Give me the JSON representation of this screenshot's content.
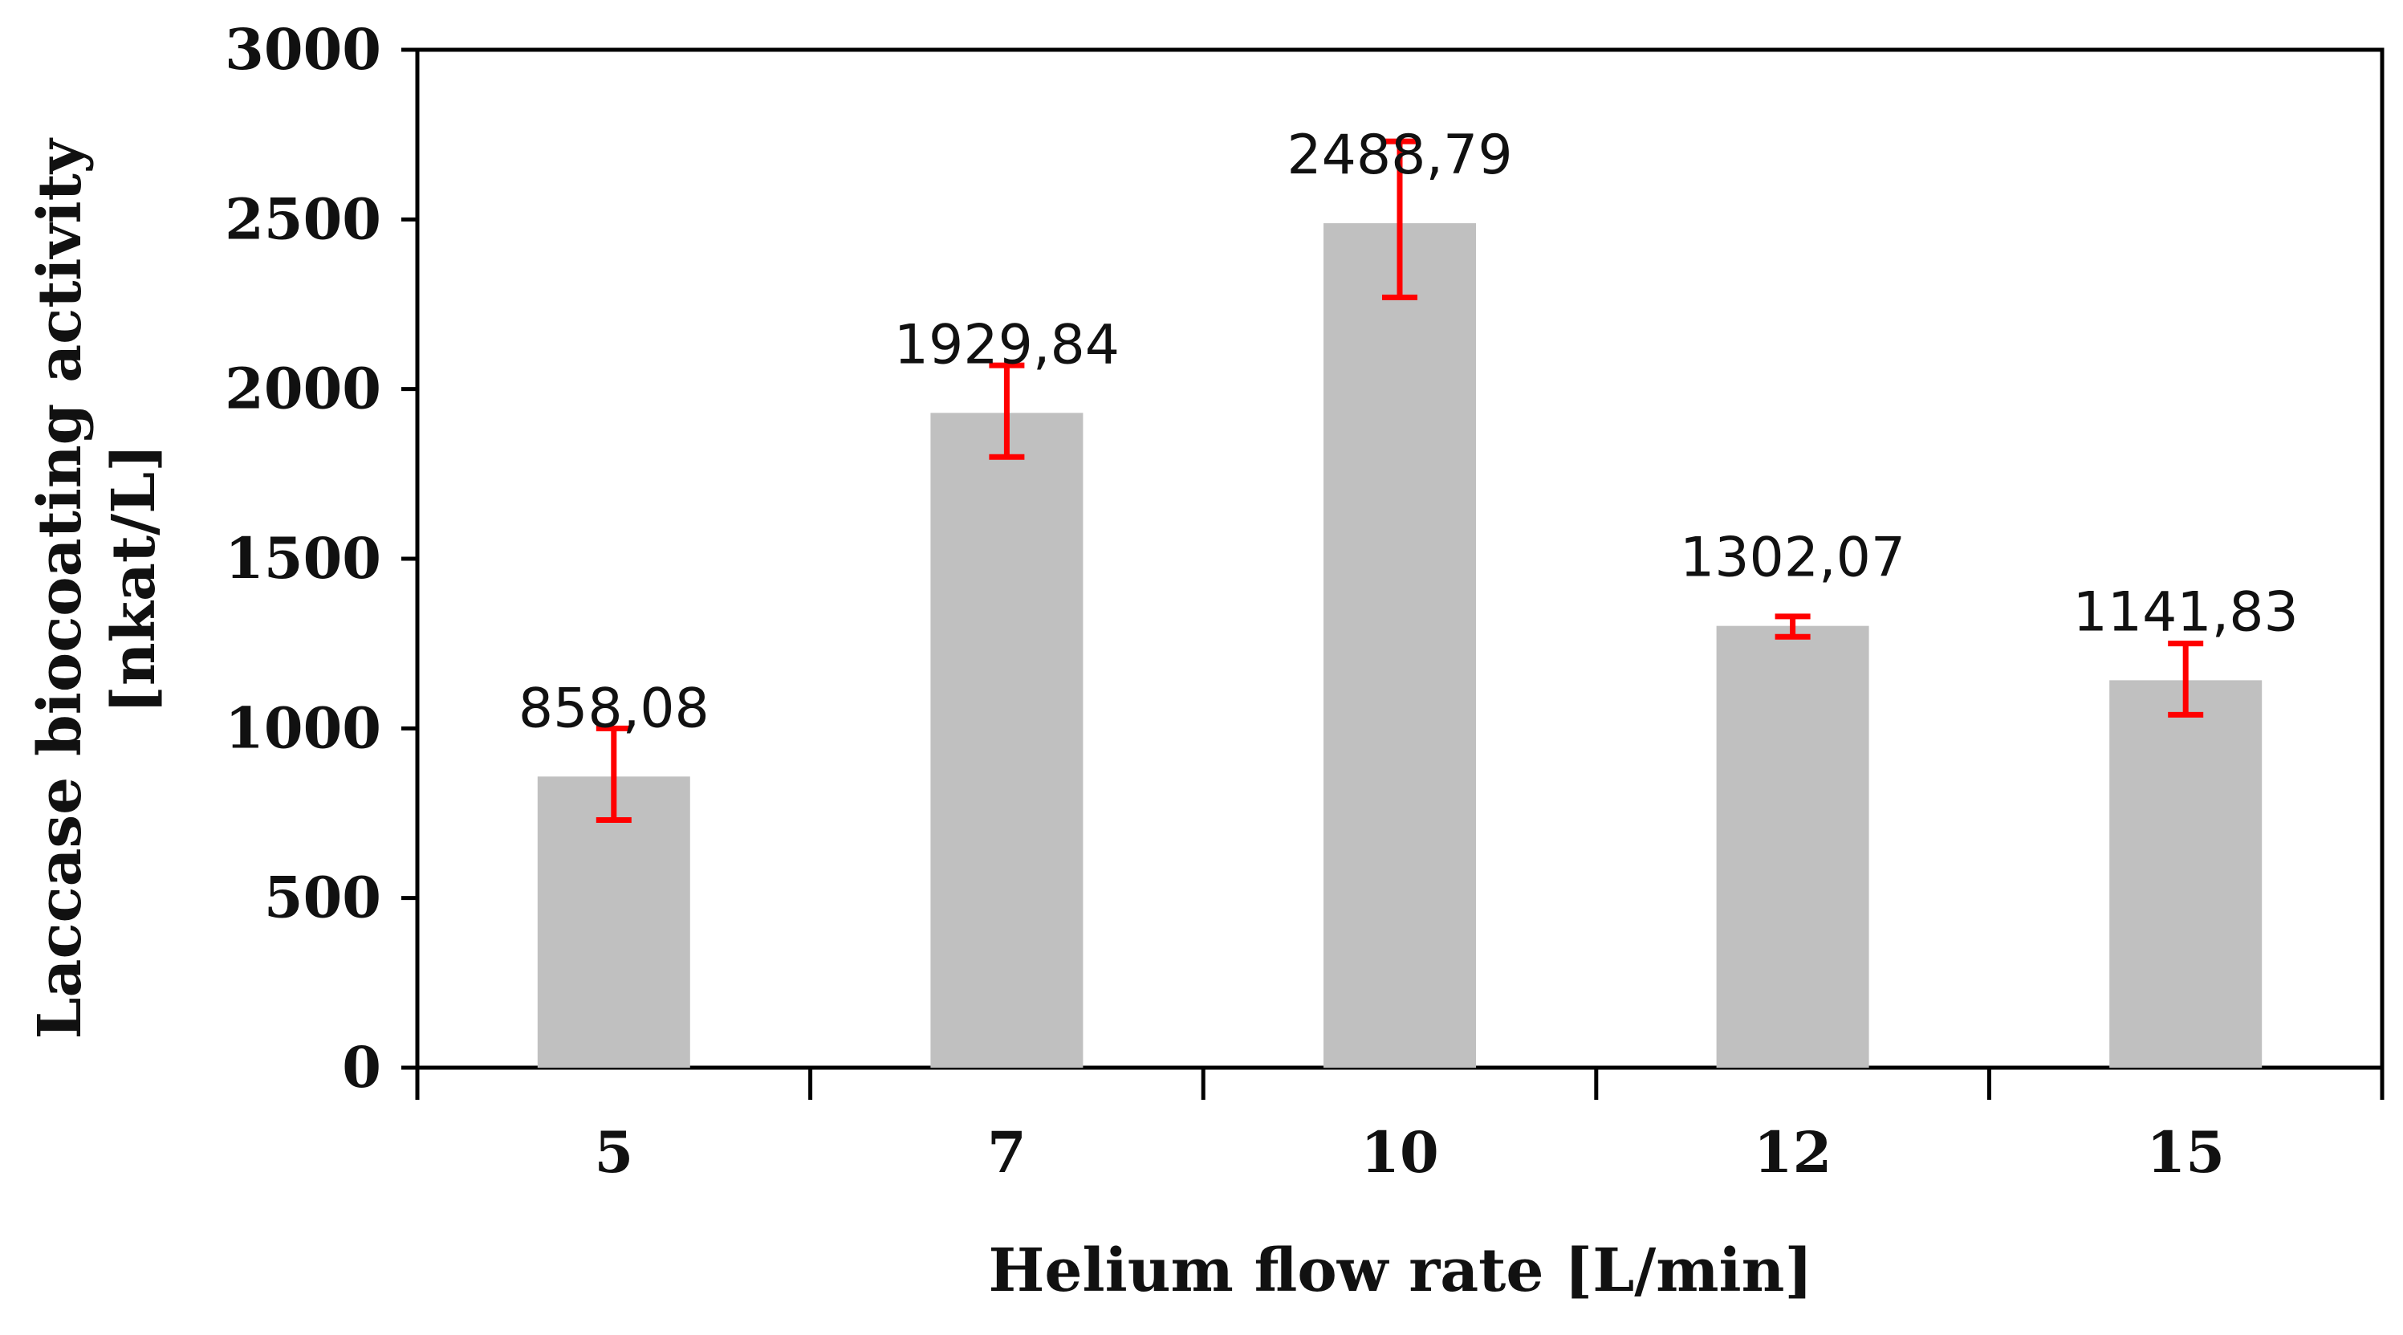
{
  "chart_data": {
    "type": "bar",
    "title": "",
    "xlabel": "Helium flow rate [L/min]",
    "ylabel_line1": "Laccase biocoating activity",
    "ylabel_line2": "[nkat/L]",
    "categories": [
      "5",
      "7",
      "10",
      "12",
      "15"
    ],
    "values": [
      858.08,
      1929.84,
      2488.79,
      1302.07,
      1141.83
    ],
    "value_labels": [
      "858,08",
      "1929,84",
      "2488,79",
      "1302,07",
      "1141,83"
    ],
    "error_low": [
      730,
      1800,
      2270,
      1270,
      1040
    ],
    "error_high": [
      1000,
      2070,
      2730,
      1330,
      1250
    ],
    "ylim": [
      0,
      3000
    ],
    "yticks": [
      0,
      500,
      1000,
      1500,
      2000,
      2500,
      3000
    ],
    "ytick_labels": [
      "0",
      "500",
      "1000",
      "1500",
      "2000",
      "2500",
      "3000"
    ],
    "grid": false,
    "legend": "none",
    "colors": {
      "bar": "#c0c0c0",
      "error": "#ff0000",
      "axis": "#000000"
    }
  }
}
